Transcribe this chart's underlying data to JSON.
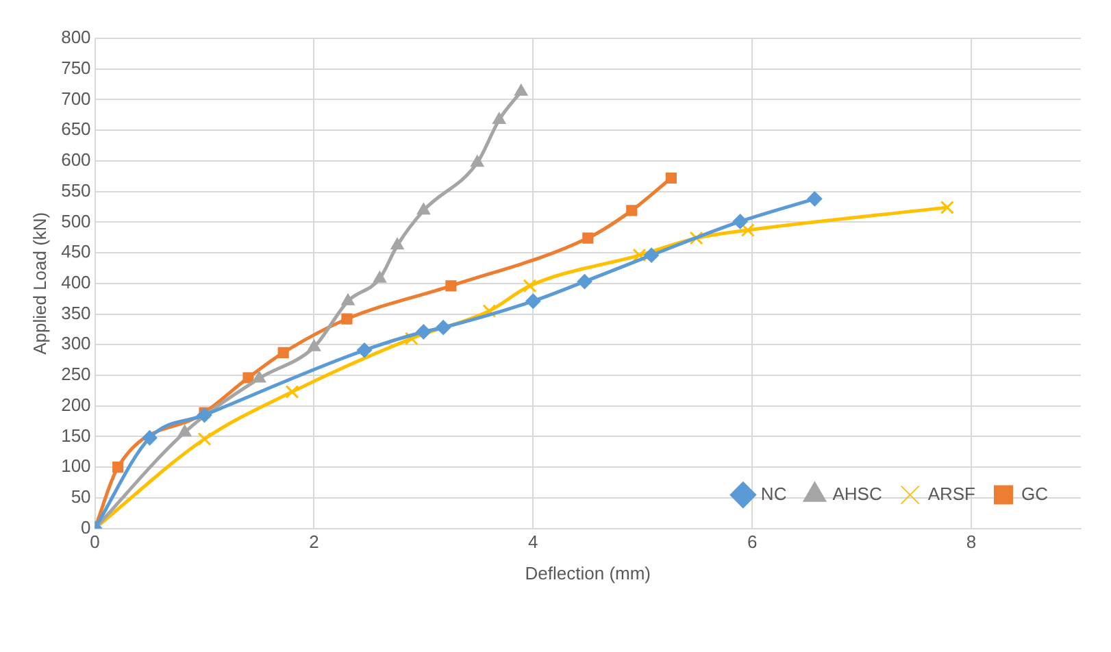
{
  "chart_data": {
    "type": "line",
    "xlabel": "Deflection (mm)",
    "ylabel": "Applied Load (kN)",
    "xlim": [
      0,
      9
    ],
    "xticks": [
      0,
      2,
      4,
      6,
      8
    ],
    "ylim": [
      0,
      800
    ],
    "yticks": [
      0,
      50,
      100,
      150,
      200,
      250,
      300,
      350,
      400,
      450,
      500,
      550,
      600,
      650,
      700,
      750,
      800
    ],
    "grid": true,
    "legend": "bottom right",
    "line_style": "solid",
    "series": [
      {
        "name": "NC",
        "color": "#5b9bd5",
        "marker": "diamond",
        "x": [
          0,
          0.5,
          1.0,
          2.46,
          3.0,
          3.18,
          4.0,
          4.47,
          5.08,
          5.89,
          6.57
        ],
        "values": [
          0,
          148,
          185,
          291,
          321,
          328,
          371,
          403,
          446,
          501,
          538
        ]
      },
      {
        "name": "AHSC",
        "color": "#a5a5a5",
        "marker": "triangle",
        "x": [
          0,
          0.82,
          1.5,
          2.0,
          2.31,
          2.6,
          2.76,
          3.0,
          3.49,
          3.69,
          3.89
        ],
        "values": [
          0,
          157,
          245,
          296,
          371,
          408,
          462,
          519,
          597,
          667,
          713
        ]
      },
      {
        "name": "ARSF",
        "color": "#ffc000",
        "marker": "cross",
        "x": [
          0,
          1.0,
          1.8,
          2.89,
          3.6,
          3.97,
          4.97,
          5.49,
          5.96,
          7.78
        ],
        "values": [
          0,
          146,
          223,
          310,
          355,
          396,
          446,
          474,
          487,
          524
        ]
      },
      {
        "name": "GC",
        "color": "#ed7d31",
        "marker": "square",
        "x": [
          0,
          0.21,
          1.0,
          1.4,
          1.72,
          2.3,
          3.25,
          4.5,
          4.9,
          5.26
        ],
        "values": [
          0,
          100,
          189,
          246,
          287,
          342,
          396,
          474,
          519,
          572
        ]
      }
    ]
  }
}
